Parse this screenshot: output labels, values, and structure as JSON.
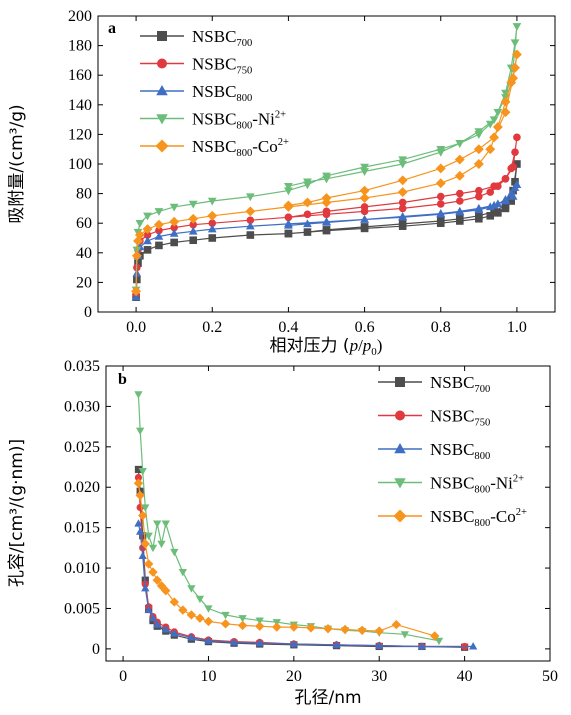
{
  "chart_data": [
    {
      "panel_label": "a",
      "type": "line",
      "xlabel_prefix": "相对压力 (",
      "xlabel_p": "p",
      "xlabel_slash": "/",
      "xlabel_p0": "p",
      "xlabel_sub0": "0",
      "xlabel_suffix": ")",
      "ylabel": "吸附量/(cm³/g)",
      "xlim": [
        -0.1,
        1.1
      ],
      "ylim": [
        0,
        200
      ],
      "xticks": [
        0.0,
        0.2,
        0.4,
        0.6,
        0.8,
        1.0
      ],
      "xtick_labels": [
        "0.0",
        "0.2",
        "0.4",
        "0.6",
        "0.8",
        "1.0"
      ],
      "yticks": [
        0,
        20,
        40,
        60,
        80,
        100,
        120,
        140,
        160,
        180,
        200
      ],
      "legend_position": "top-left",
      "grid": false,
      "series": [
        {
          "name": "NSBC",
          "sub": "700",
          "sup": "",
          "suffix": "",
          "color": "#4d4d4d",
          "marker": "square",
          "x": [
            0.0,
            0.002,
            0.005,
            0.01,
            0.03,
            0.06,
            0.1,
            0.15,
            0.2,
            0.3,
            0.4,
            0.5,
            0.6,
            0.7,
            0.8,
            0.85,
            0.9,
            0.93,
            0.95,
            0.97,
            0.985,
            0.995,
            1.0,
            0.99,
            0.97,
            0.94,
            0.9,
            0.85,
            0.8,
            0.7,
            0.6,
            0.5,
            0.45,
            0.4
          ],
          "y": [
            10,
            22,
            33,
            38,
            42,
            45,
            47,
            48.5,
            50,
            52,
            53,
            55,
            56.5,
            58,
            60,
            61.5,
            63,
            65,
            67,
            70,
            75,
            88,
            100,
            82,
            72,
            68,
            65,
            63,
            61.5,
            59.5,
            57.5,
            55.5,
            54,
            53
          ]
        },
        {
          "name": "NSBC",
          "sub": "750",
          "sup": "",
          "suffix": "",
          "color": "#e03a3e",
          "marker": "circle",
          "x": [
            0.0,
            0.002,
            0.005,
            0.01,
            0.03,
            0.06,
            0.1,
            0.15,
            0.2,
            0.3,
            0.4,
            0.5,
            0.6,
            0.7,
            0.8,
            0.85,
            0.9,
            0.93,
            0.95,
            0.97,
            0.985,
            0.995,
            1.0,
            0.99,
            0.97,
            0.94,
            0.9,
            0.85,
            0.8,
            0.7,
            0.6,
            0.5,
            0.45,
            0.4
          ],
          "y": [
            12,
            30,
            42,
            48,
            52,
            55,
            57,
            59,
            60,
            62,
            64,
            66,
            68,
            70,
            73,
            75,
            78,
            81,
            85,
            90,
            97,
            108,
            118,
            98,
            90,
            85,
            82,
            80,
            78,
            74,
            71,
            68,
            66,
            64
          ]
        },
        {
          "name": "NSBC",
          "sub": "800",
          "sup": "",
          "suffix": "",
          "color": "#3f6fc4",
          "marker": "triangle-up",
          "x": [
            0.0,
            0.002,
            0.005,
            0.01,
            0.03,
            0.06,
            0.1,
            0.15,
            0.2,
            0.3,
            0.4,
            0.5,
            0.6,
            0.7,
            0.8,
            0.85,
            0.9,
            0.93,
            0.95,
            0.97,
            0.985,
            0.995,
            1.0,
            0.99,
            0.97,
            0.94,
            0.9,
            0.85,
            0.8,
            0.7,
            0.6,
            0.5,
            0.45,
            0.4
          ],
          "y": [
            10,
            26,
            38,
            44,
            48,
            51,
            53,
            54.5,
            56,
            58,
            59.5,
            61,
            62.5,
            64,
            66,
            67.5,
            69,
            71,
            73,
            76,
            80,
            84,
            86,
            78,
            75,
            72,
            70,
            68,
            66.5,
            64.5,
            62.5,
            60.5,
            59.5,
            58.5
          ]
        },
        {
          "name": "NSBC",
          "sub": "800",
          "sup": "2+",
          "suffix": "-Ni",
          "color": "#6cbd7a",
          "marker": "triangle-down",
          "x": [
            0.0,
            0.002,
            0.005,
            0.01,
            0.03,
            0.06,
            0.1,
            0.15,
            0.2,
            0.3,
            0.4,
            0.45,
            0.5,
            0.6,
            0.7,
            0.8,
            0.85,
            0.9,
            0.93,
            0.95,
            0.97,
            0.985,
            0.995,
            1.0,
            0.99,
            0.97,
            0.94,
            0.9,
            0.85,
            0.8,
            0.7,
            0.6,
            0.5,
            0.45,
            0.4
          ],
          "y": [
            15,
            42,
            54,
            60,
            65,
            68,
            71,
            73,
            75,
            78,
            82,
            86,
            92,
            98,
            103,
            110,
            114,
            120,
            127,
            135,
            148,
            165,
            182,
            193,
            165,
            145,
            130,
            122,
            114,
            108,
            100,
            95,
            90,
            88,
            85
          ]
        },
        {
          "name": "NSBC",
          "sub": "800",
          "sup": "2+",
          "suffix": "-Co",
          "color": "#f7941d",
          "marker": "diamond",
          "x": [
            0.0,
            0.002,
            0.005,
            0.01,
            0.03,
            0.06,
            0.1,
            0.15,
            0.2,
            0.3,
            0.4,
            0.5,
            0.6,
            0.7,
            0.8,
            0.85,
            0.9,
            0.93,
            0.95,
            0.97,
            0.985,
            0.995,
            1.0,
            0.99,
            0.97,
            0.94,
            0.9,
            0.85,
            0.8,
            0.7,
            0.6,
            0.5,
            0.45,
            0.4
          ],
          "y": [
            14,
            38,
            48,
            52,
            56,
            59,
            61,
            63,
            65,
            68,
            71,
            74,
            77,
            81,
            87,
            92,
            100,
            110,
            125,
            142,
            155,
            165,
            174,
            158,
            135,
            118,
            110,
            103,
            97,
            89,
            82,
            77,
            74,
            72
          ]
        }
      ]
    },
    {
      "panel_label": "b",
      "type": "line",
      "xlabel": "孔径/nm",
      "ylabel": "孔容/[cm³/(g·nm)]",
      "xlim": [
        -2,
        50
      ],
      "ylim": [
        -0.0015,
        0.035
      ],
      "xticks": [
        0,
        10,
        20,
        30,
        40,
        50
      ],
      "yticks": [
        0,
        0.005,
        0.01,
        0.015,
        0.02,
        0.025,
        0.03,
        0.035
      ],
      "ytick_labels": [
        "0",
        "0.005",
        "0.010",
        "0.015",
        "0.020",
        "0.025",
        "0.030",
        "0.035"
      ],
      "legend_position": "top-right",
      "grid": false,
      "series": [
        {
          "name": "NSBC",
          "sub": "700",
          "sup": "",
          "suffix": "",
          "color": "#4d4d4d",
          "marker": "square",
          "x": [
            1.8,
            2.0,
            2.3,
            2.6,
            3.0,
            3.5,
            4.0,
            5.0,
            6.0,
            8.0,
            10,
            13,
            16,
            20,
            25,
            30,
            35,
            40
          ],
          "y": [
            0.0222,
            0.0195,
            0.014,
            0.0085,
            0.005,
            0.0035,
            0.0028,
            0.0022,
            0.0017,
            0.0012,
            0.0009,
            0.0007,
            0.0006,
            0.0005,
            0.0004,
            0.0003,
            0.0003,
            0.0002
          ]
        },
        {
          "name": "NSBC",
          "sub": "750",
          "sup": "",
          "suffix": "",
          "color": "#e03a3e",
          "marker": "circle",
          "x": [
            1.8,
            2.0,
            2.3,
            2.6,
            3.0,
            3.5,
            4.0,
            5.0,
            6.0,
            8.0,
            10,
            13,
            16,
            20,
            25,
            30,
            35,
            40
          ],
          "y": [
            0.0212,
            0.0175,
            0.0125,
            0.008,
            0.0052,
            0.004,
            0.0033,
            0.0027,
            0.0021,
            0.0015,
            0.0011,
            0.0009,
            0.0008,
            0.0006,
            0.0005,
            0.0004,
            0.0003,
            0.0003
          ]
        },
        {
          "name": "NSBC",
          "sub": "800",
          "sup": "",
          "suffix": "",
          "color": "#3f6fc4",
          "marker": "triangle-up",
          "x": [
            1.8,
            2.0,
            2.3,
            2.6,
            3.0,
            3.5,
            4.0,
            5.0,
            6.0,
            8.0,
            10,
            13,
            16,
            20,
            25,
            30,
            35,
            41
          ],
          "y": [
            0.0155,
            0.0145,
            0.0115,
            0.0075,
            0.0048,
            0.0038,
            0.003,
            0.0024,
            0.0019,
            0.0014,
            0.001,
            0.0008,
            0.0007,
            0.0006,
            0.0005,
            0.0004,
            0.0003,
            0.0003
          ]
        },
        {
          "name": "NSBC",
          "sub": "800",
          "sup": "2+",
          "suffix": "-Ni",
          "color": "#6cbd7a",
          "marker": "triangle-down",
          "x": [
            1.8,
            2.0,
            2.3,
            2.6,
            3.0,
            3.5,
            4.0,
            4.5,
            5.0,
            6.0,
            7.0,
            8.0,
            9.0,
            10,
            12,
            14,
            16,
            18,
            20,
            22,
            24,
            26,
            28,
            30,
            33,
            37
          ],
          "y": [
            0.0315,
            0.027,
            0.022,
            0.0175,
            0.014,
            0.0125,
            0.0155,
            0.013,
            0.0155,
            0.012,
            0.0095,
            0.0075,
            0.0062,
            0.005,
            0.0042,
            0.0038,
            0.0035,
            0.0033,
            0.003,
            0.0028,
            0.0025,
            0.0023,
            0.0022,
            0.002,
            0.0018,
            0.001
          ]
        },
        {
          "name": "NSBC",
          "sub": "800",
          "sup": "2+",
          "suffix": "-Co",
          "color": "#f7941d",
          "marker": "diamond",
          "x": [
            1.8,
            2.0,
            2.3,
            2.6,
            3.0,
            3.5,
            4.0,
            4.5,
            5.0,
            6.0,
            7.0,
            8.0,
            9.0,
            10,
            12,
            14,
            16,
            18,
            20,
            22,
            24,
            26,
            28,
            30,
            32,
            36.5
          ],
          "y": [
            0.0205,
            0.019,
            0.0165,
            0.013,
            0.0105,
            0.0095,
            0.0085,
            0.0078,
            0.0072,
            0.0058,
            0.0048,
            0.0042,
            0.0038,
            0.0034,
            0.0031,
            0.0029,
            0.0028,
            0.0027,
            0.0027,
            0.0026,
            0.0025,
            0.0024,
            0.0023,
            0.0022,
            0.003,
            0.0016
          ]
        }
      ]
    }
  ]
}
